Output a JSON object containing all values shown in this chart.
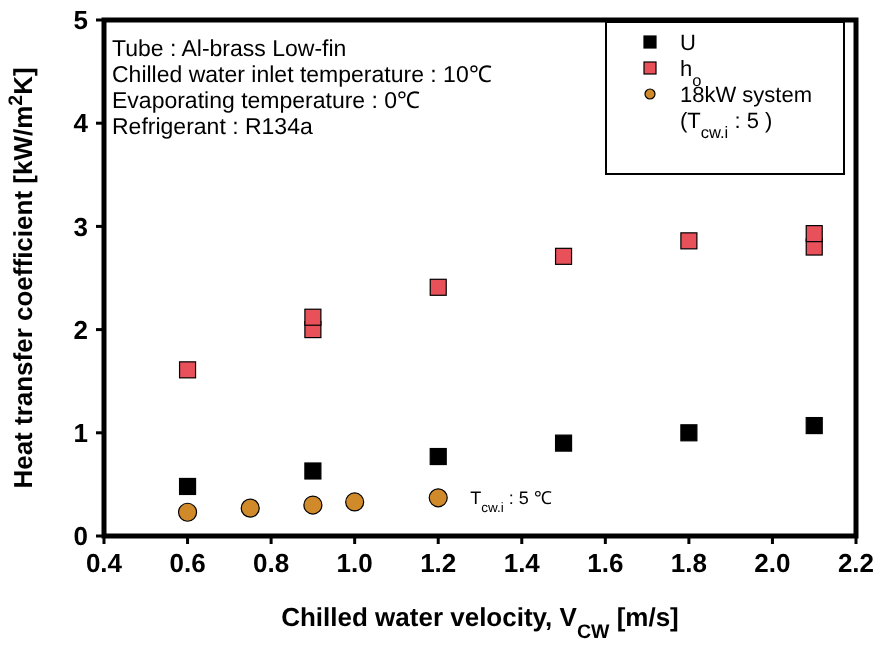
{
  "chart_data": {
    "type": "scatter",
    "xlabel": "Chilled water velocity, V$_{CW}$ [m/s]",
    "ylabel": "Heat transfer coefficient [kW/m$^{2}$K]",
    "xlim": [
      0.4,
      2.2
    ],
    "xticks": [
      {
        "value": 0.4,
        "label": "0.4"
      },
      {
        "value": 0.6,
        "label": "0.6"
      },
      {
        "value": 0.8,
        "label": "0.8"
      },
      {
        "value": 1.0,
        "label": "1.0"
      },
      {
        "value": 1.2,
        "label": "1.2"
      },
      {
        "value": 1.4,
        "label": "1.4"
      },
      {
        "value": 1.6,
        "label": "1.6"
      },
      {
        "value": 1.8,
        "label": "1.8"
      },
      {
        "value": 2.0,
        "label": "2.0"
      },
      {
        "value": 2.2,
        "label": "2.2"
      }
    ],
    "ylim": [
      0,
      5
    ],
    "yticks": [
      0,
      1,
      2,
      3,
      4,
      5
    ],
    "legend": "top right",
    "grid": false,
    "series": [
      {
        "name": "U",
        "color": "#000000",
        "marker": "square",
        "x": [
          0.6,
          0.9,
          1.2,
          1.5,
          1.8,
          2.1
        ],
        "values": [
          0.48,
          0.63,
          0.77,
          0.9,
          1.0,
          1.07
        ]
      },
      {
        "name": "h$_{o}$",
        "color": "#e8505a",
        "marker": "square",
        "x": [
          0.6,
          0.9,
          0.9,
          1.2,
          1.5,
          1.8,
          2.1,
          2.1
        ],
        "values": [
          1.61,
          2.0,
          2.12,
          2.41,
          2.71,
          2.86,
          2.8,
          2.93
        ]
      },
      {
        "name": "18kW system\n(T$_{cw.i}$ : 5 )",
        "color": "#d08a2a",
        "marker": "circle",
        "x": [
          0.6,
          0.75,
          0.9,
          1.0,
          1.2
        ],
        "values": [
          0.23,
          0.27,
          0.3,
          0.33,
          0.37
        ]
      }
    ],
    "annotations": [
      "Tube : Al-brass Low-fin",
      "Chilled water inlet temperature : 10℃",
      "Evaporating temperature  : 0℃",
      "Refrigerant : R134a",
      {
        "text": "T$_{cw.i}$ : 5 ℃",
        "x": 1.2,
        "y": 0.37
      }
    ]
  }
}
